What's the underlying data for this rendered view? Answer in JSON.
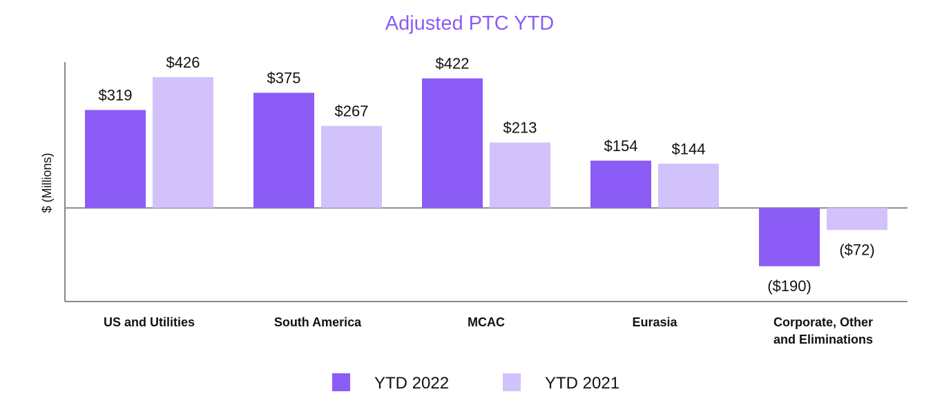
{
  "chart_data": {
    "type": "bar",
    "title": "Adjusted PTC YTD",
    "ylabel": "$ (Millions)",
    "xlabel": "",
    "categories": [
      [
        "US and Utilities"
      ],
      [
        "South America"
      ],
      [
        "MCAC"
      ],
      [
        "Eurasia"
      ],
      [
        "Corporate, Other",
        "and Eliminations"
      ]
    ],
    "series": [
      {
        "name": "YTD 2022",
        "color": "#8b5cf6",
        "values": [
          319,
          375,
          422,
          154,
          -190
        ],
        "labels": [
          "$319",
          "$375",
          "$422",
          "$154",
          "($190)"
        ]
      },
      {
        "name": "YTD 2021",
        "color": "#d2c2fb",
        "values": [
          426,
          267,
          213,
          144,
          -72
        ],
        "labels": [
          "$426",
          "$267",
          "$213",
          "$144",
          "($72)"
        ]
      }
    ],
    "ylim": [
      -305,
      475
    ],
    "grid": false,
    "legend": "bottom-center",
    "colors": {
      "title": "#8b5cf6",
      "axis": "#888888",
      "text": "#111111"
    }
  }
}
